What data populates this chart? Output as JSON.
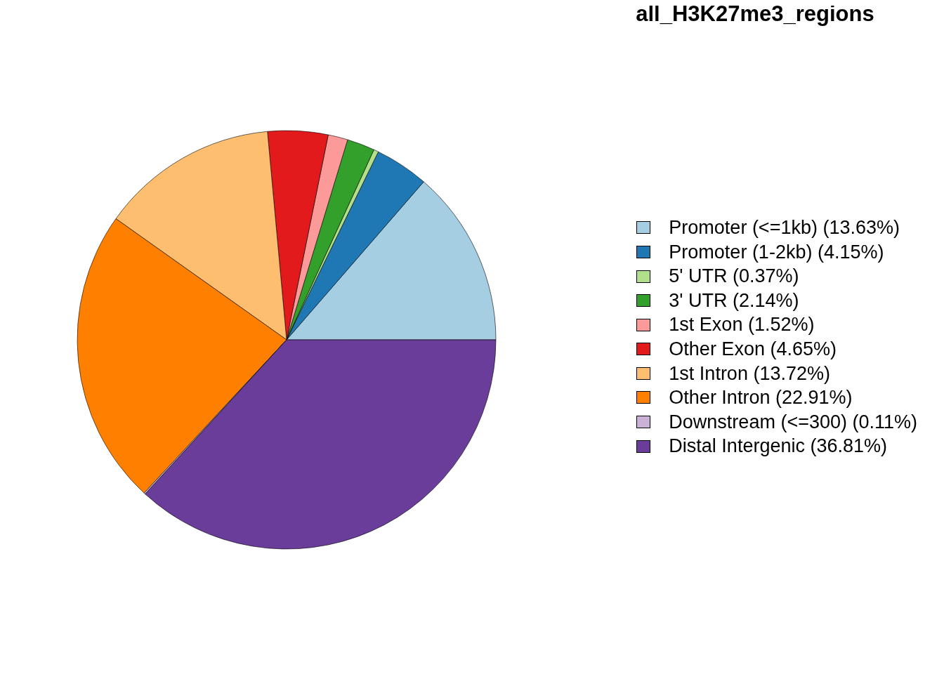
{
  "chart_data": {
    "type": "pie",
    "title": "all_H3K27me3_regions",
    "categories": [
      "Promoter (<=1kb) (13.63%)",
      "Promoter (1-2kb) (4.15%)",
      "5' UTR (0.37%)",
      "3' UTR (2.14%)",
      "1st Exon (1.52%)",
      "Other Exon (4.65%)",
      "1st Intron (13.72%)",
      "Other Intron (22.91%)",
      "Downstream (<=300) (0.11%)",
      "Distal Intergenic (36.81%)"
    ],
    "values": [
      13.63,
      4.15,
      0.37,
      2.14,
      1.52,
      4.65,
      13.72,
      22.91,
      0.11,
      36.81
    ],
    "colors": [
      "#a6cee3",
      "#1f78b4",
      "#b2df8a",
      "#33a02c",
      "#fb9a99",
      "#e31a1c",
      "#fdbf6f",
      "#ff7f00",
      "#cab2d6",
      "#6a3d9a"
    ],
    "legend": "right"
  }
}
